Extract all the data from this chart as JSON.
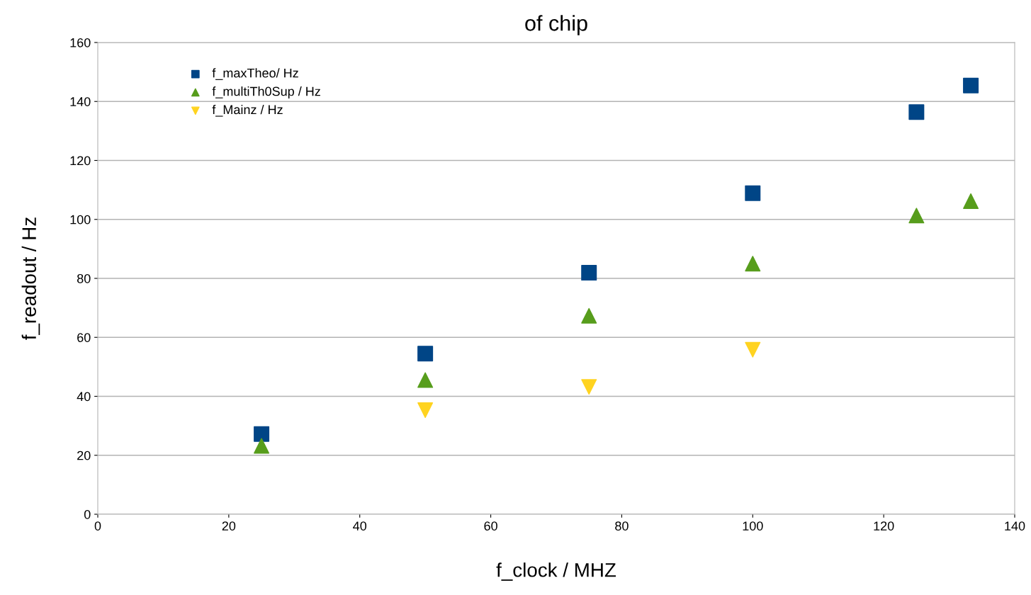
{
  "chart_data": {
    "type": "scatter",
    "title": "of chip",
    "xlabel": "f_clock / MHZ",
    "ylabel": "f_readout / Hz",
    "xlim": [
      0,
      140
    ],
    "xticks": [
      0,
      20,
      40,
      60,
      80,
      100,
      120,
      140
    ],
    "ylim": [
      0,
      160
    ],
    "yticks": [
      0,
      20,
      40,
      60,
      80,
      100,
      120,
      140,
      160
    ],
    "grid": "y",
    "legend": "top left",
    "series": [
      {
        "name": "f_maxTheo/ Hz",
        "color": "#004586",
        "marker": "square",
        "x": [
          25,
          50,
          75,
          100,
          125,
          133.3
        ],
        "values": [
          27.2,
          54.5,
          81.9,
          108.9,
          136.4,
          145.4
        ]
      },
      {
        "name": "f_multiTh0Sup / Hz",
        "color": "#579d1c",
        "marker": "triangle",
        "x": [
          25,
          50,
          75,
          100,
          125,
          133.3
        ],
        "values": [
          23.2,
          45.5,
          67.3,
          85,
          101.3,
          106.2
        ]
      },
      {
        "name": "f_Mainz / Hz",
        "color": "#ffd320",
        "marker": "triangle_down",
        "x": [
          50,
          75,
          100
        ],
        "values": [
          35.3,
          43.2,
          55.8
        ]
      }
    ]
  }
}
